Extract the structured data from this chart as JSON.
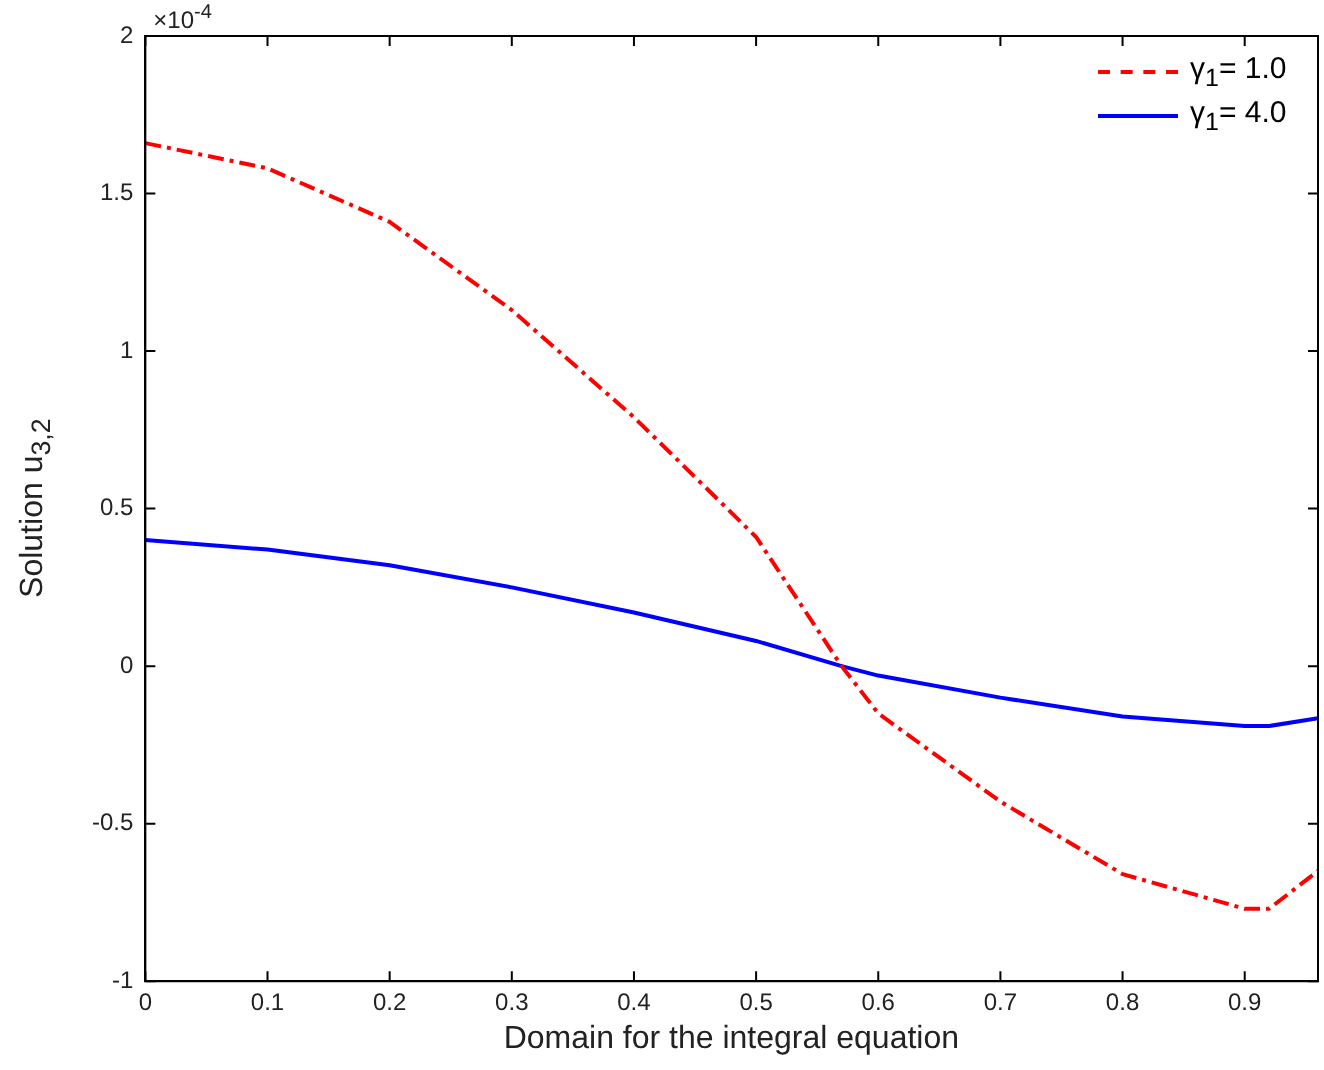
{
  "chart_data": {
    "type": "line",
    "xlabel": "Domain for the integral equation",
    "ylabel": "Solution u$_{3,2}$",
    "annotations": [
      "×10$^{-4}$"
    ],
    "xlim": [
      0,
      0.96
    ],
    "xticks": [
      0,
      0.1,
      0.2,
      0.3,
      0.4,
      0.5,
      0.6,
      0.7,
      0.8,
      0.9
    ],
    "ylim": [
      -1,
      2
    ],
    "yticks": [
      -1,
      -0.5,
      0,
      0.5,
      1,
      1.5,
      2
    ],
    "grid": false,
    "legend": "top right",
    "marker": "none",
    "series": [
      {
        "name": "γ$_{1}$= 1.0",
        "color": "#ff0000",
        "line_style": "dashed",
        "x": [
          0,
          0.1,
          0.2,
          0.3,
          0.4,
          0.5,
          0.57,
          0.6,
          0.7,
          0.8,
          0.9,
          0.92,
          0.96
        ],
        "values": [
          1.66,
          1.58,
          1.41,
          1.13,
          0.79,
          0.41,
          0,
          -0.15,
          -0.43,
          -0.66,
          -0.77,
          -0.77,
          -0.65
        ]
      },
      {
        "name": "γ$_{1}$= 4.0",
        "color": "#0000ff",
        "line_style": "solid",
        "x": [
          0,
          0.1,
          0.2,
          0.3,
          0.4,
          0.5,
          0.57,
          0.6,
          0.7,
          0.8,
          0.9,
          0.92,
          0.96
        ],
        "values": [
          0.4,
          0.37,
          0.32,
          0.25,
          0.17,
          0.08,
          0,
          -0.03,
          -0.1,
          -0.16,
          -0.19,
          -0.19,
          -0.165
        ]
      }
    ]
  }
}
